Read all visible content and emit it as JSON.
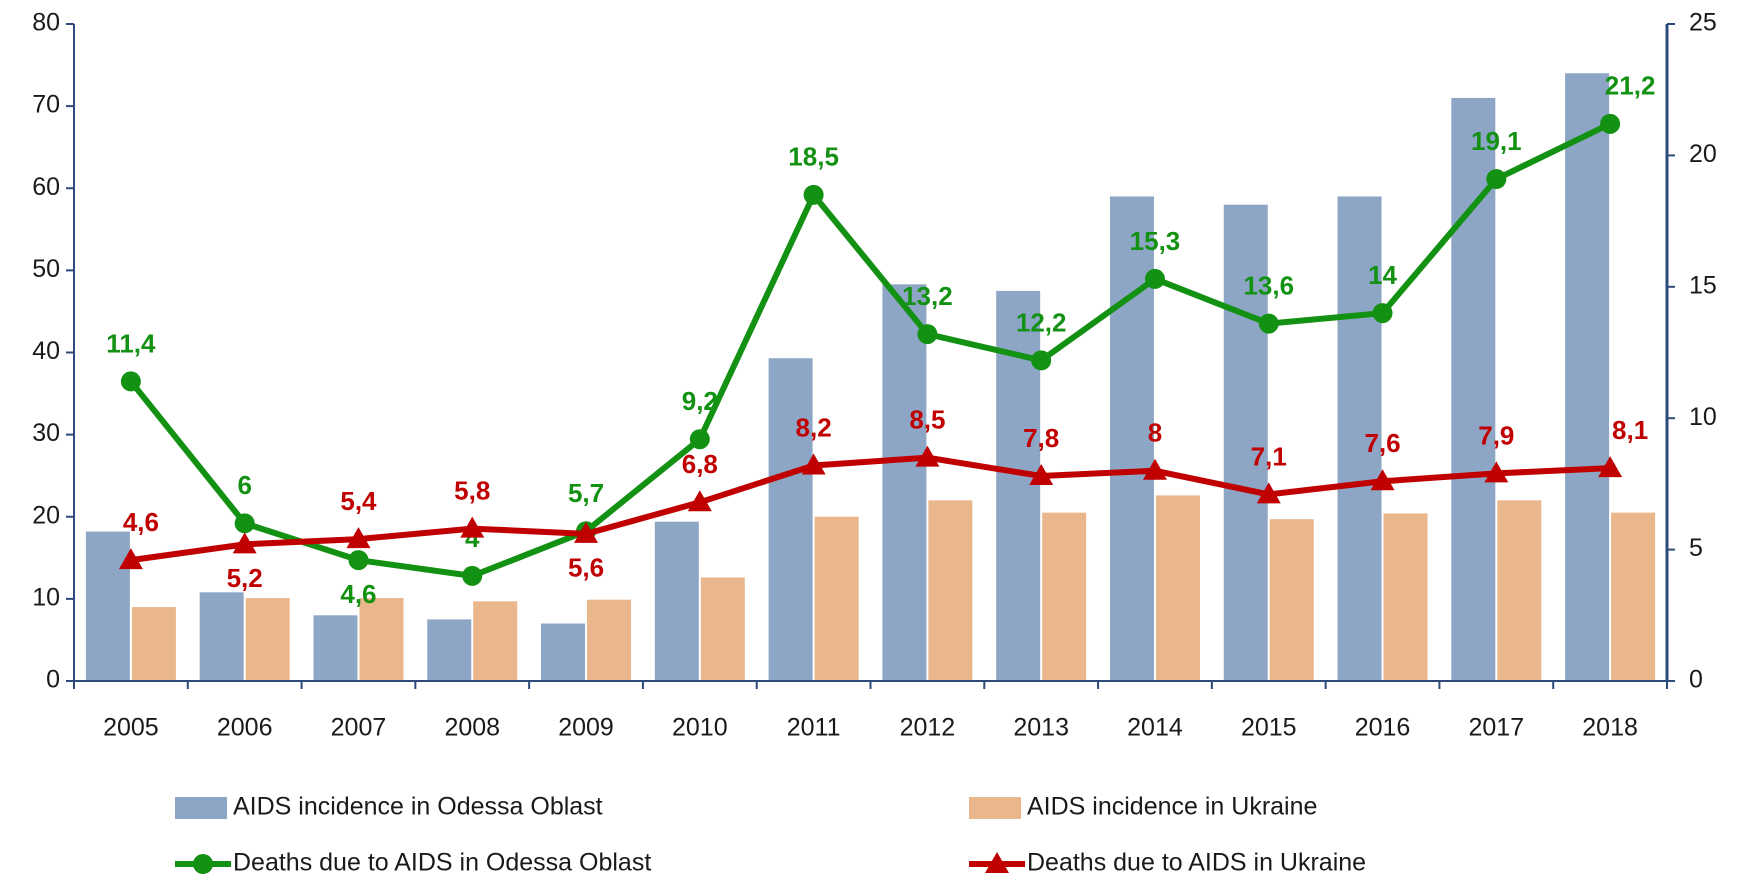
{
  "chart_data": {
    "type": "bar_line",
    "categories": [
      "2005",
      "2006",
      "2007",
      "2008",
      "2009",
      "2010",
      "2011",
      "2012",
      "2013",
      "2014",
      "2015",
      "2016",
      "2017",
      "2018"
    ],
    "series": [
      {
        "name": "AIDS incidence in Odessa Oblast",
        "type": "bar",
        "color": "#8ea6c6",
        "values": [
          18.2,
          10.8,
          8,
          7.5,
          7,
          19.4,
          39.3,
          48.3,
          47.5,
          59,
          58,
          59,
          71,
          74
        ]
      },
      {
        "name": "AIDS incidence in Ukraine",
        "type": "bar",
        "color": "#eab68c",
        "values": [
          9,
          10.1,
          10.1,
          9.7,
          9.9,
          12.6,
          20,
          22,
          20.5,
          22.6,
          19.7,
          20.4,
          22,
          20.5
        ]
      },
      {
        "name": "Deaths due to AIDS in Odessa Oblast",
        "type": "line",
        "axis": "y2",
        "color": "#139113",
        "marker": "circle",
        "values": [
          11.4,
          6,
          4.6,
          4,
          5.7,
          9.2,
          18.5,
          13.2,
          12.2,
          15.3,
          13.6,
          14,
          19.1,
          21.2
        ],
        "value_labels": [
          "11,4",
          "6",
          "4,6",
          "4",
          "5,7",
          "9,2",
          "18,5",
          "13,2",
          "12,2",
          "15,3",
          "13,6",
          "14",
          "19,1",
          "21,2"
        ]
      },
      {
        "name": "Deaths due to AIDS in Ukraine",
        "type": "line",
        "axis": "y2",
        "color": "#c00000",
        "marker": "triangle",
        "values": [
          4.6,
          5.2,
          5.4,
          5.8,
          5.6,
          6.8,
          8.2,
          8.5,
          7.8,
          8,
          7.1,
          7.6,
          7.9,
          8.1
        ],
        "value_labels": [
          "4,6",
          "5,2",
          "5,4",
          "5,8",
          "5,6",
          "6,8",
          "8,2",
          "8,5",
          "7,8",
          "8",
          "7,1",
          "7,6",
          "7,9",
          "8,1"
        ]
      }
    ],
    "ylim": [
      0,
      80
    ],
    "yticks": [
      0,
      10,
      20,
      30,
      40,
      50,
      60,
      70,
      80
    ],
    "y2lim": [
      0,
      25
    ],
    "y2ticks": [
      0,
      5,
      10,
      15,
      20,
      25
    ]
  }
}
